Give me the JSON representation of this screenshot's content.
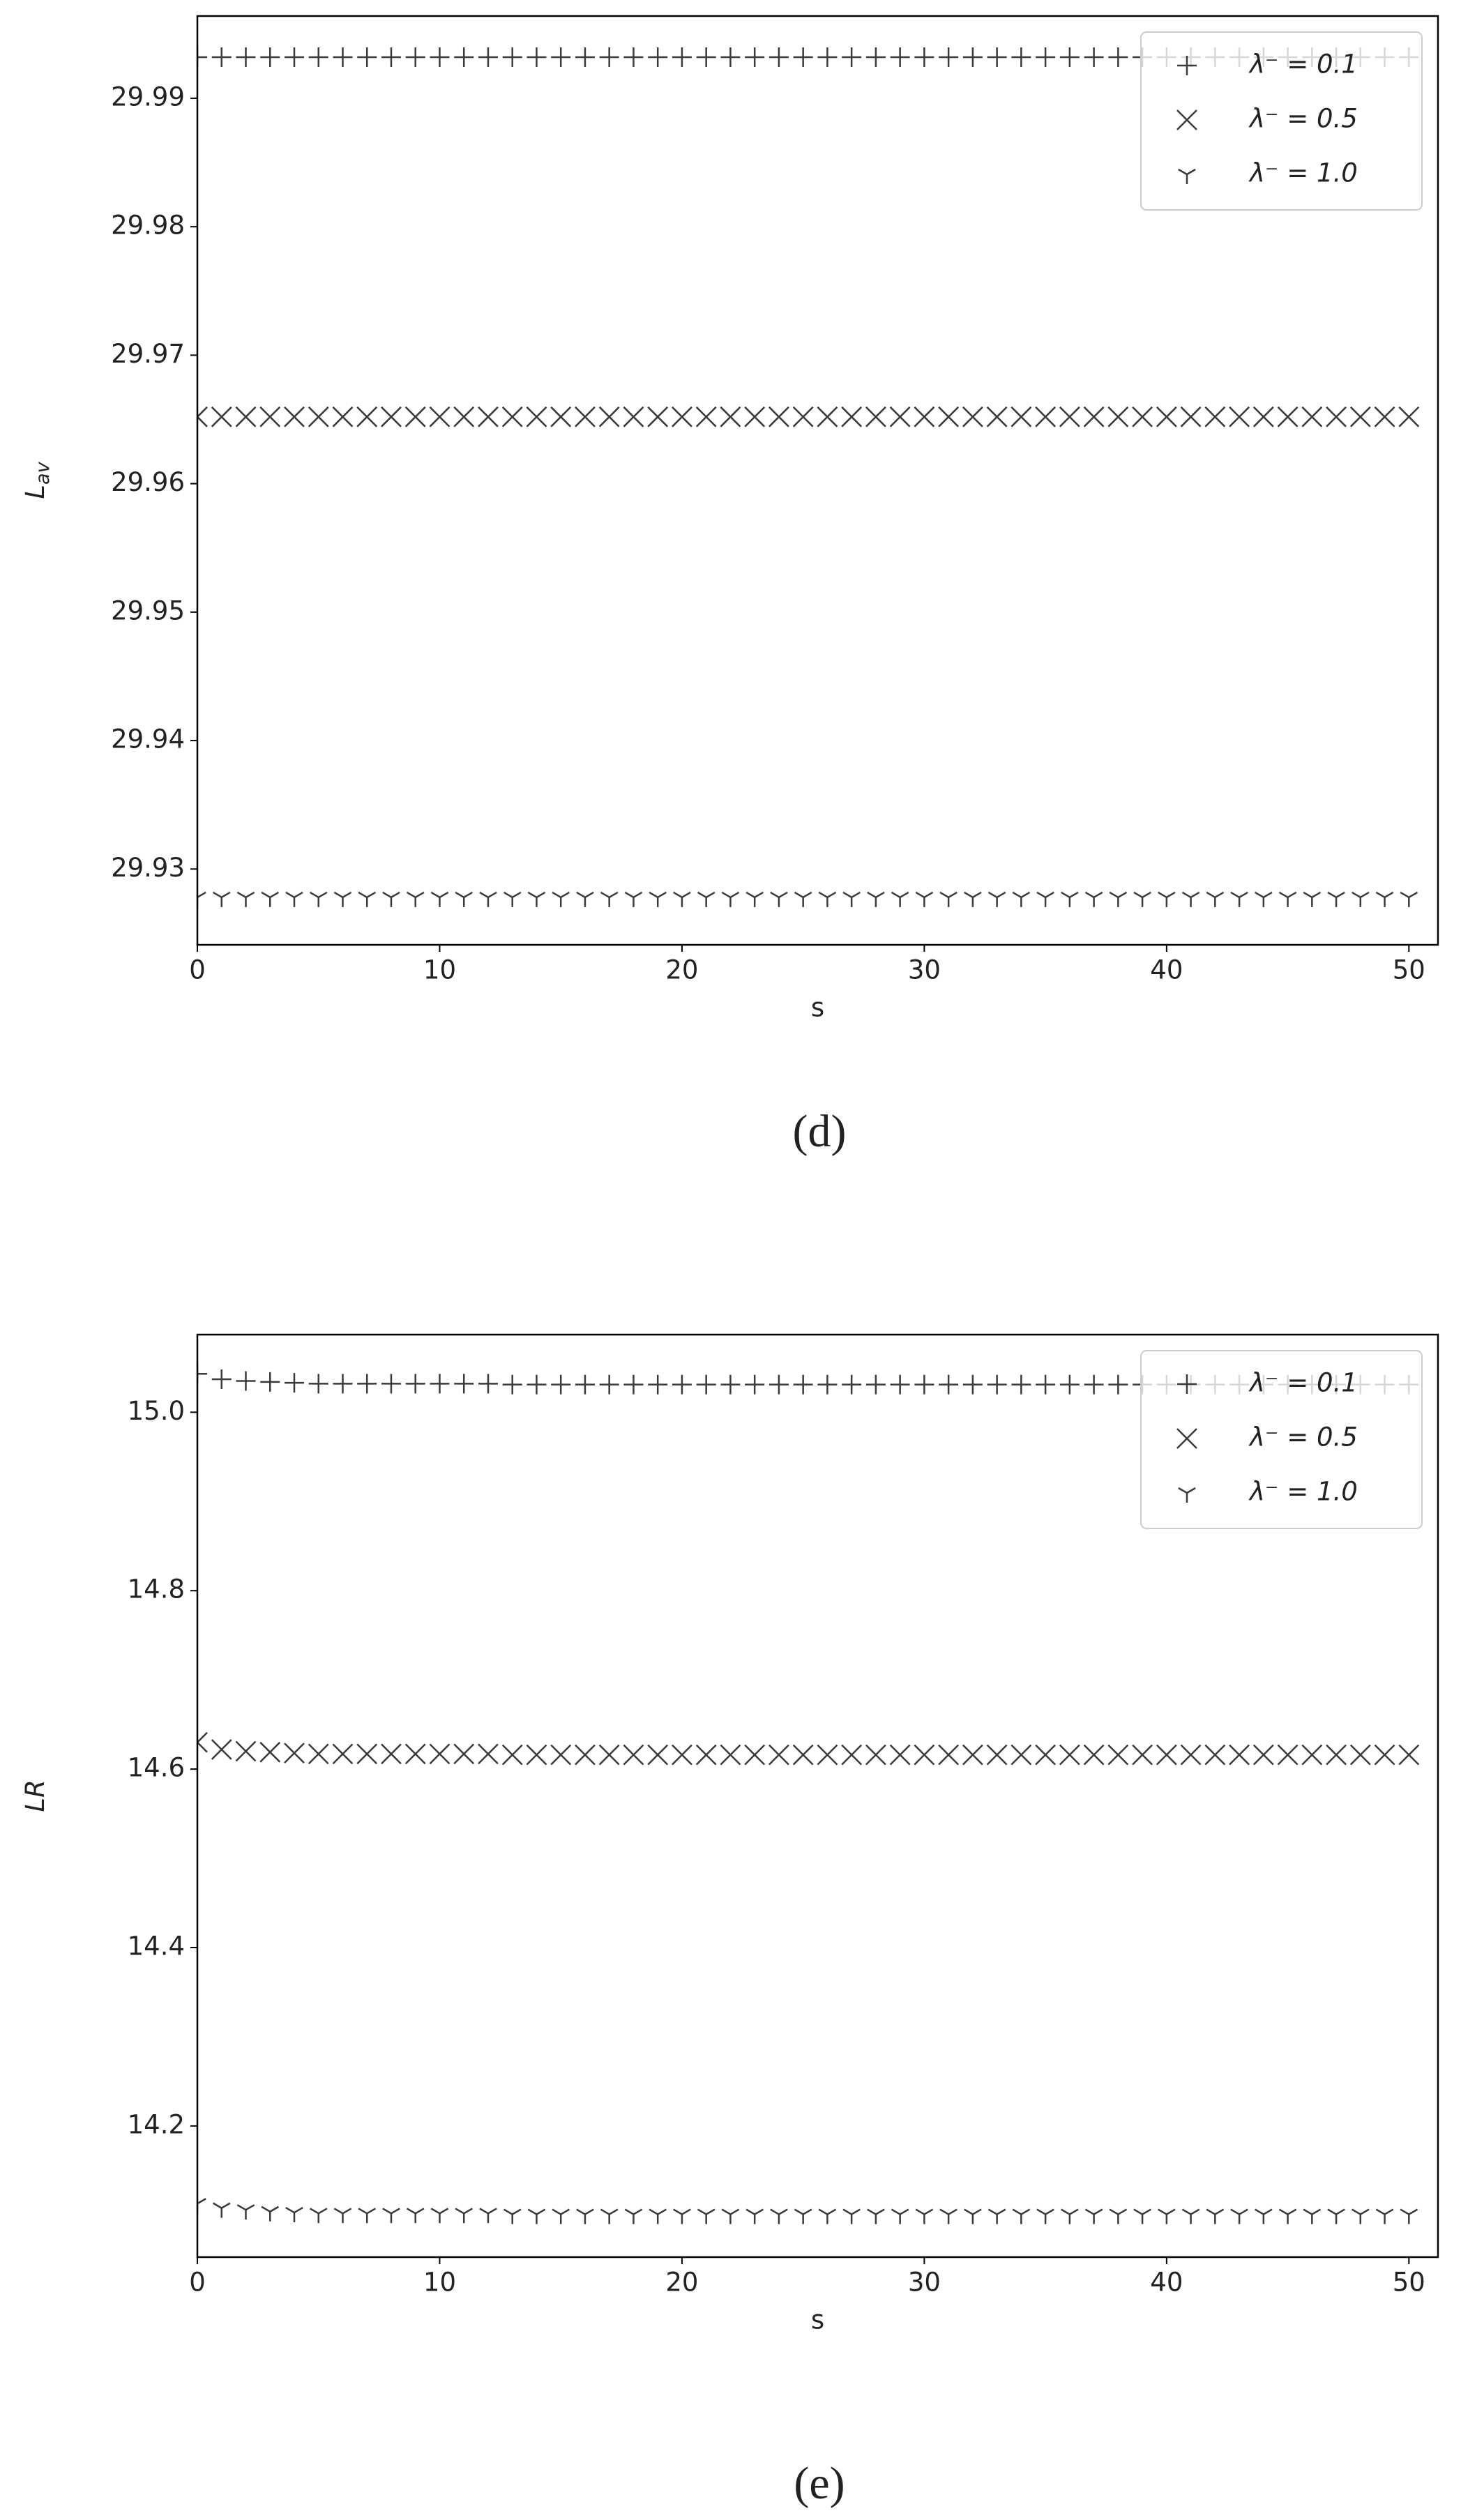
{
  "chart_data": [
    {
      "type": "scatter",
      "caption": "(d)",
      "x_label": "s",
      "y_label": "L",
      "y_label_subscript": "av",
      "x": [
        0,
        1,
        2,
        3,
        4,
        5,
        6,
        7,
        8,
        9,
        10,
        11,
        12,
        13,
        14,
        15,
        16,
        17,
        18,
        19,
        20,
        21,
        22,
        23,
        24,
        25,
        26,
        27,
        28,
        29,
        30,
        31,
        32,
        33,
        34,
        35,
        36,
        37,
        38,
        39,
        40,
        41,
        42,
        43,
        44,
        45,
        46,
        47,
        48,
        49,
        50
      ],
      "xlim": [
        0,
        51.2
      ],
      "xticks": [
        0,
        10,
        20,
        30,
        40,
        50
      ],
      "ylim": [
        29.9241,
        29.9964
      ],
      "yticks": [
        29.93,
        29.94,
        29.95,
        29.96,
        29.97,
        29.98,
        29.99
      ],
      "legend": "upper right",
      "series": [
        {
          "name": "λ⁻ = 0.1",
          "marker": "plus",
          "color": "#3a3a3a",
          "values": [
            29.9932,
            29.9932,
            29.9932,
            29.9932,
            29.9932,
            29.9932,
            29.9932,
            29.9932,
            29.9932,
            29.9932,
            29.9932,
            29.9932,
            29.9932,
            29.9932,
            29.9932,
            29.9932,
            29.9932,
            29.9932,
            29.9932,
            29.9932,
            29.9932,
            29.9932,
            29.9932,
            29.9932,
            29.9932,
            29.9932,
            29.9932,
            29.9932,
            29.9932,
            29.9932,
            29.9932,
            29.9932,
            29.9932,
            29.9932,
            29.9932,
            29.9932,
            29.9932,
            29.9932,
            29.9932,
            29.9932,
            29.9932,
            29.9932,
            29.9932,
            29.9932,
            29.9932,
            29.9932,
            29.9932,
            29.9932,
            29.9932,
            29.9932,
            29.9932
          ]
        },
        {
          "name": "λ⁻ = 0.5",
          "marker": "x",
          "color": "#3a3a3a",
          "values": [
            29.9652,
            29.9652,
            29.9652,
            29.9652,
            29.9652,
            29.9652,
            29.9652,
            29.9652,
            29.9652,
            29.9652,
            29.9652,
            29.9652,
            29.9652,
            29.9652,
            29.9652,
            29.9652,
            29.9652,
            29.9652,
            29.9652,
            29.9652,
            29.9652,
            29.9652,
            29.9652,
            29.9652,
            29.9652,
            29.9652,
            29.9652,
            29.9652,
            29.9652,
            29.9652,
            29.9652,
            29.9652,
            29.9652,
            29.9652,
            29.9652,
            29.9652,
            29.9652,
            29.9652,
            29.9652,
            29.9652,
            29.9652,
            29.9652,
            29.9652,
            29.9652,
            29.9652,
            29.9652,
            29.9652,
            29.9652,
            29.9652,
            29.9652,
            29.9652
          ]
        },
        {
          "name": "λ⁻ = 1.0",
          "marker": "tri",
          "color": "#3a3a3a",
          "values": [
            29.9278,
            29.9278,
            29.9278,
            29.9278,
            29.9278,
            29.9278,
            29.9278,
            29.9278,
            29.9278,
            29.9278,
            29.9278,
            29.9278,
            29.9278,
            29.9278,
            29.9278,
            29.9278,
            29.9278,
            29.9278,
            29.9278,
            29.9278,
            29.9278,
            29.9278,
            29.9278,
            29.9278,
            29.9278,
            29.9278,
            29.9278,
            29.9278,
            29.9278,
            29.9278,
            29.9278,
            29.9278,
            29.9278,
            29.9278,
            29.9278,
            29.9278,
            29.9278,
            29.9278,
            29.9278,
            29.9278,
            29.9278,
            29.9278,
            29.9278,
            29.9278,
            29.9278,
            29.9278,
            29.9278,
            29.9278,
            29.9278,
            29.9278,
            29.9278
          ]
        }
      ]
    },
    {
      "type": "scatter",
      "caption": "(e)",
      "x_label": "s",
      "y_label": "LR",
      "x": [
        0,
        1,
        2,
        3,
        4,
        5,
        6,
        7,
        8,
        9,
        10,
        11,
        12,
        13,
        14,
        15,
        16,
        17,
        18,
        19,
        20,
        21,
        22,
        23,
        24,
        25,
        26,
        27,
        28,
        29,
        30,
        31,
        32,
        33,
        34,
        35,
        36,
        37,
        38,
        39,
        40,
        41,
        42,
        43,
        44,
        45,
        46,
        47,
        48,
        49,
        50
      ],
      "xlim": [
        0,
        51.2
      ],
      "xticks": [
        0,
        10,
        20,
        30,
        40,
        50
      ],
      "ylim": [
        14.053,
        15.087
      ],
      "yticks": [
        14.2,
        14.4,
        14.6,
        14.8,
        {
          "value": 15,
          "label": "15.0"
        }
      ],
      "legend": "upper right",
      "series": [
        {
          "name": "λ⁻ = 0.1",
          "marker": "plus",
          "color": "#3a3a3a",
          "values": [
            15.043,
            15.037,
            15.035,
            15.034,
            15.033,
            15.032,
            15.032,
            15.032,
            15.032,
            15.032,
            15.032,
            15.032,
            15.032,
            15.031,
            15.031,
            15.031,
            15.031,
            15.031,
            15.031,
            15.031,
            15.031,
            15.031,
            15.031,
            15.031,
            15.031,
            15.031,
            15.031,
            15.031,
            15.031,
            15.031,
            15.031,
            15.031,
            15.031,
            15.031,
            15.031,
            15.031,
            15.031,
            15.031,
            15.031,
            15.031,
            15.031,
            15.031,
            15.031,
            15.031,
            15.031,
            15.031,
            15.031,
            15.031,
            15.031,
            15.031,
            15.031
          ]
        },
        {
          "name": "λ⁻ = 0.5",
          "marker": "x",
          "color": "#3a3a3a",
          "values": [
            14.63,
            14.622,
            14.62,
            14.619,
            14.618,
            14.617,
            14.617,
            14.617,
            14.617,
            14.617,
            14.617,
            14.617,
            14.617,
            14.616,
            14.616,
            14.616,
            14.616,
            14.616,
            14.616,
            14.616,
            14.616,
            14.616,
            14.616,
            14.616,
            14.616,
            14.616,
            14.616,
            14.616,
            14.616,
            14.616,
            14.616,
            14.616,
            14.616,
            14.616,
            14.616,
            14.616,
            14.616,
            14.616,
            14.616,
            14.616,
            14.616,
            14.616,
            14.616,
            14.616,
            14.616,
            14.616,
            14.616,
            14.616,
            14.616,
            14.616,
            14.616
          ]
        },
        {
          "name": "λ⁻ = 1.0",
          "marker": "tri",
          "color": "#3a3a3a",
          "values": [
            14.113,
            14.108,
            14.106,
            14.104,
            14.103,
            14.102,
            14.102,
            14.102,
            14.102,
            14.102,
            14.102,
            14.102,
            14.102,
            14.101,
            14.101,
            14.101,
            14.101,
            14.101,
            14.101,
            14.101,
            14.101,
            14.101,
            14.101,
            14.101,
            14.101,
            14.101,
            14.101,
            14.101,
            14.101,
            14.101,
            14.101,
            14.101,
            14.101,
            14.101,
            14.101,
            14.101,
            14.101,
            14.101,
            14.101,
            14.101,
            14.101,
            14.101,
            14.101,
            14.101,
            14.101,
            14.101,
            14.101,
            14.101,
            14.101,
            14.101,
            14.101
          ]
        }
      ]
    }
  ]
}
